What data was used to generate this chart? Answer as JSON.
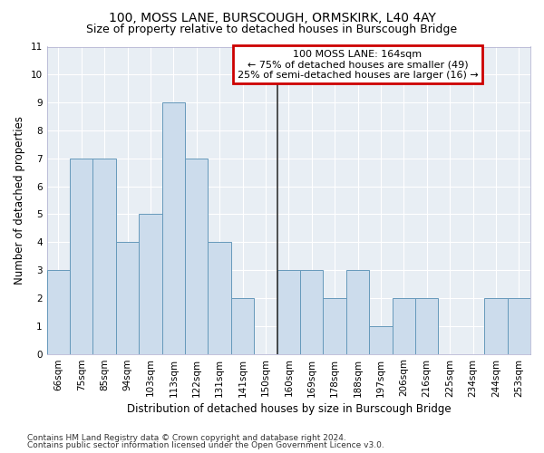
{
  "title1": "100, MOSS LANE, BURSCOUGH, ORMSKIRK, L40 4AY",
  "title2": "Size of property relative to detached houses in Burscough Bridge",
  "xlabel": "Distribution of detached houses by size in Burscough Bridge",
  "ylabel": "Number of detached properties",
  "categories": [
    "66sqm",
    "75sqm",
    "85sqm",
    "94sqm",
    "103sqm",
    "113sqm",
    "122sqm",
    "131sqm",
    "141sqm",
    "150sqm",
    "160sqm",
    "169sqm",
    "178sqm",
    "188sqm",
    "197sqm",
    "206sqm",
    "216sqm",
    "225sqm",
    "234sqm",
    "244sqm",
    "253sqm"
  ],
  "values": [
    3,
    7,
    7,
    4,
    5,
    9,
    7,
    4,
    2,
    0,
    3,
    3,
    2,
    3,
    1,
    2,
    2,
    0,
    0,
    2,
    2
  ],
  "bar_color": "#ccdcec",
  "bar_edge_color": "#6699bb",
  "annotation_box_text": "100 MOSS LANE: 164sqm\n← 75% of detached houses are smaller (49)\n25% of semi-detached houses are larger (16) →",
  "annotation_box_edge_color": "#cc0000",
  "ylim": [
    0,
    11
  ],
  "yticks": [
    0,
    1,
    2,
    3,
    4,
    5,
    6,
    7,
    8,
    9,
    10,
    11
  ],
  "footer1": "Contains HM Land Registry data © Crown copyright and database right 2024.",
  "footer2": "Contains public sector information licensed under the Open Government Licence v3.0.",
  "background_color": "#ffffff",
  "plot_bg_color": "#e8eef4",
  "grid_color": "#ffffff",
  "vline_color": "#333333",
  "vline_x": 9.5,
  "title1_fontsize": 10,
  "title2_fontsize": 9,
  "xlabel_fontsize": 8.5,
  "ylabel_fontsize": 8.5,
  "tick_fontsize": 7.5,
  "annotation_fontsize": 8,
  "footer_fontsize": 6.5
}
